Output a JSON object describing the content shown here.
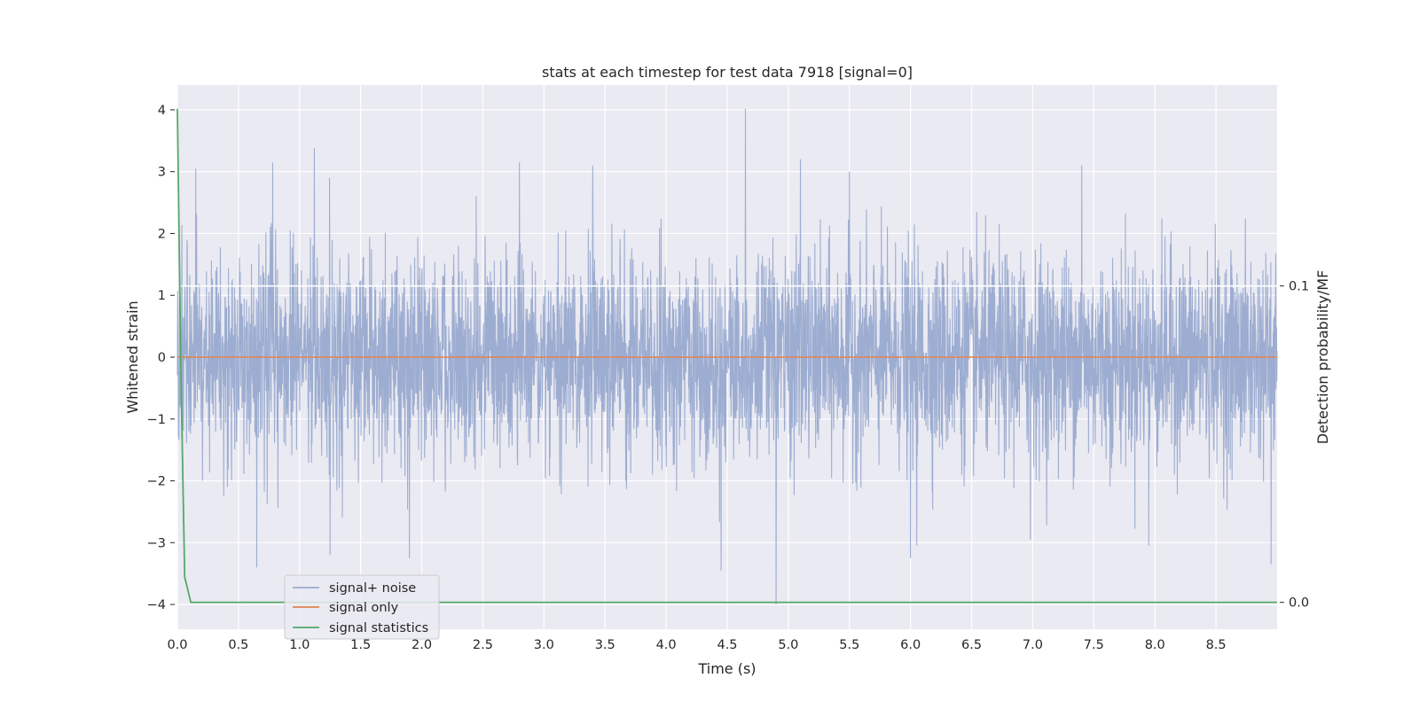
{
  "chart_data": {
    "type": "line",
    "title": "stats at each timestep for test data 7918 [signal=0]",
    "xlabel": "Time (s)",
    "ylabel": "Whitened strain",
    "y2label": "Detection probability/MF",
    "xlim": [
      0,
      9.0
    ],
    "ylim": [
      -4.4,
      4.4
    ],
    "y2lim": [
      -0.0085,
      0.1635
    ],
    "xticks": [
      0.0,
      0.5,
      1.0,
      1.5,
      2.0,
      2.5,
      3.0,
      3.5,
      4.0,
      4.5,
      5.0,
      5.5,
      6.0,
      6.5,
      7.0,
      7.5,
      8.0,
      8.5
    ],
    "xtick_labels": [
      "0.0",
      "0.5",
      "1.0",
      "1.5",
      "2.0",
      "2.5",
      "3.0",
      "3.5",
      "4.0",
      "4.5",
      "5.0",
      "5.5",
      "6.0",
      "6.5",
      "7.0",
      "7.5",
      "8.0",
      "8.5"
    ],
    "yticks": [
      4,
      3,
      2,
      1,
      0,
      -1,
      -2,
      -3,
      -4
    ],
    "ytick_labels": [
      "4",
      "3",
      "2",
      "1",
      "0",
      "−1",
      "−2",
      "−3",
      "−4"
    ],
    "y2ticks": [
      0.1,
      0.0
    ],
    "y2tick_labels": [
      "0.1",
      "0.0"
    ],
    "grid": true,
    "legend_position": "lower-left",
    "series": [
      {
        "name": "signal+ noise",
        "axis": "left",
        "color": "#99aacf",
        "kind": "noise",
        "sigma": 0.82,
        "spikes": [
          [
            0.08,
            1.9
          ],
          [
            0.15,
            3.05
          ],
          [
            0.65,
            -3.4
          ],
          [
            0.78,
            3.15
          ],
          [
            1.12,
            3.38
          ],
          [
            1.25,
            -3.2
          ],
          [
            1.9,
            -3.25
          ],
          [
            2.8,
            3.15
          ],
          [
            3.4,
            3.1
          ],
          [
            4.45,
            -3.45
          ],
          [
            4.65,
            4.02
          ],
          [
            4.9,
            -4.0
          ],
          [
            5.1,
            3.2
          ],
          [
            5.5,
            3.0
          ],
          [
            6.0,
            -3.25
          ],
          [
            6.05,
            -3.05
          ],
          [
            6.98,
            -2.95
          ],
          [
            7.4,
            3.1
          ],
          [
            7.95,
            -3.05
          ],
          [
            8.95,
            -3.35
          ]
        ]
      },
      {
        "name": "signal only",
        "axis": "left",
        "color": "#dd8452",
        "x": [
          0.0,
          9.0
        ],
        "y": [
          0.0,
          0.0
        ]
      },
      {
        "name": "signal statistics",
        "axis": "right",
        "color": "#55a868",
        "x": [
          0.0,
          0.03,
          0.06,
          0.11,
          0.2,
          1.0,
          3.0,
          5.0,
          7.0,
          9.0
        ],
        "y": [
          0.156,
          0.07,
          0.008,
          0.0,
          0.0,
          0.0,
          0.0,
          0.0,
          0.0,
          0.0
        ]
      }
    ],
    "hlines_right": [
      {
        "y": 0.1,
        "color": "#ffffff"
      }
    ]
  }
}
